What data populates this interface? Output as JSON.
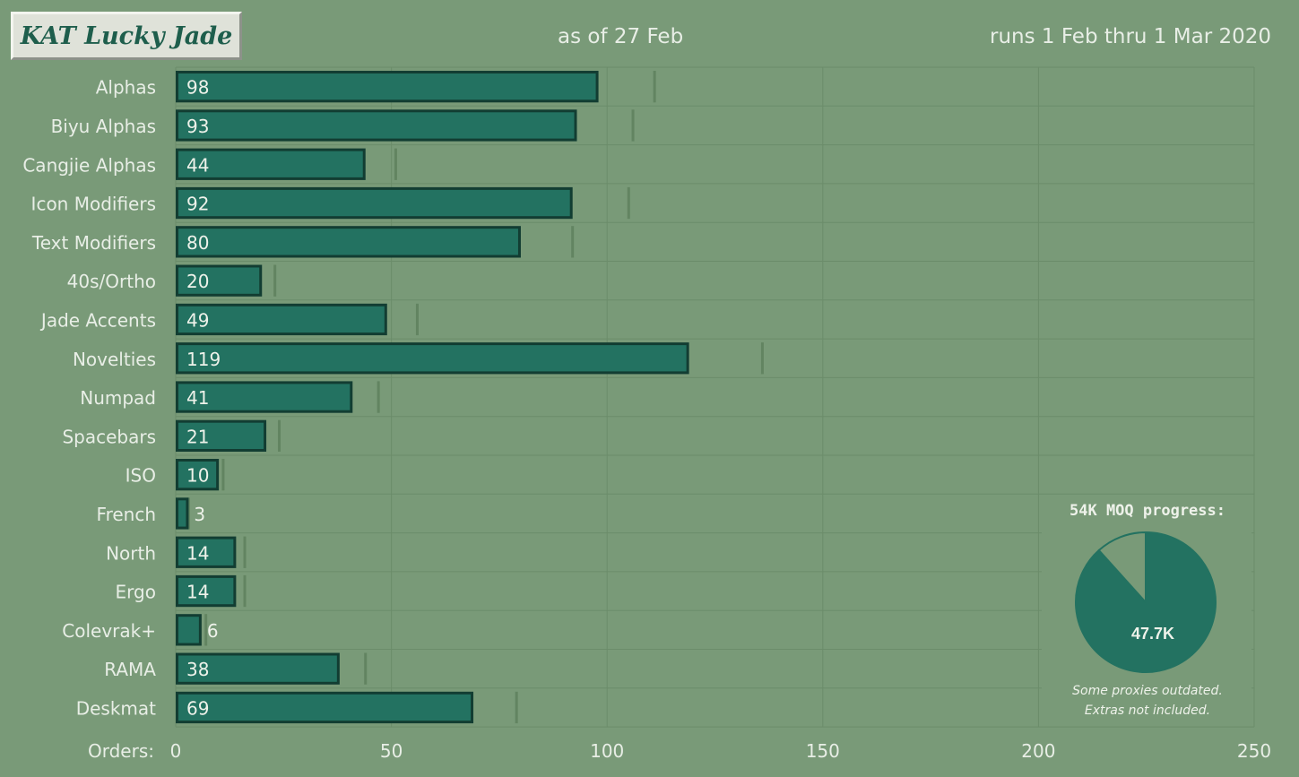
{
  "header": {
    "title": "KAT Lucky Jade",
    "as_of": "as of 27 Feb",
    "run_dates": "runs 1 Feb thru 1 Mar 2020"
  },
  "colors": {
    "background": "#799a78",
    "bar_fill": "#237261",
    "bar_border": "#123d32",
    "marker": "#628461",
    "pie_main": "#237261",
    "pie_rest": "#799a78"
  },
  "chart_data": [
    {
      "type": "bar",
      "orientation": "horizontal",
      "categories": [
        "Alphas",
        "Biyu Alphas",
        "Cangjie Alphas",
        "Icon Modifiers",
        "Text Modifiers",
        "40s/Ortho",
        "Jade Accents",
        "Novelties",
        "Numpad",
        "Spacebars",
        "ISO",
        "French",
        "North",
        "Ergo",
        "Colevrak+",
        "RAMA",
        "Deskmat"
      ],
      "values": [
        98,
        93,
        44,
        92,
        80,
        20,
        49,
        119,
        41,
        21,
        10,
        3,
        14,
        14,
        6,
        38,
        69
      ],
      "value_labels": [
        "98",
        "93",
        "44",
        "92",
        "80",
        "20",
        "49",
        "119",
        "41",
        "21",
        "10",
        "3",
        "14",
        "14",
        "6",
        "38",
        "69"
      ],
      "markers": [
        111,
        106,
        51,
        105,
        92,
        23,
        56,
        136,
        47,
        24,
        11,
        3,
        16,
        16,
        7,
        44,
        79
      ],
      "xlabel": "Orders:",
      "xlim": [
        0,
        250
      ],
      "xticks": [
        0,
        50,
        100,
        150,
        200,
        250
      ],
      "xtick_labels": [
        "0",
        "50",
        "100",
        "150",
        "200",
        "250"
      ],
      "grid": true
    },
    {
      "type": "pie",
      "title": "54K MOQ progress:",
      "values": [
        47.7,
        6.3
      ],
      "labels": [
        "47.7K",
        ""
      ],
      "value_label": "47.7K",
      "note_lines": [
        "Some proxies outdated.",
        "Extras not included."
      ]
    }
  ]
}
